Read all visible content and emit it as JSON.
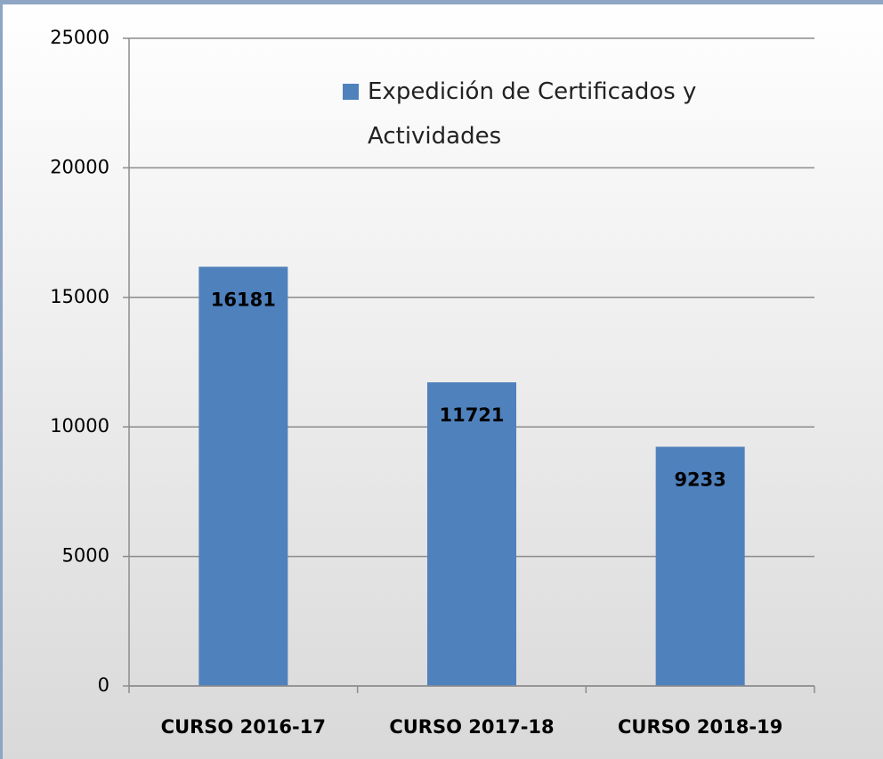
{
  "chart_data": {
    "type": "bar",
    "categories": [
      "CURSO 2016-17",
      "CURSO 2017-18",
      "CURSO 2018-19"
    ],
    "series": [
      {
        "name": "Expedición de Certificados y Actividades",
        "color": "#4f81bd",
        "values": [
          16181,
          11721,
          9233
        ]
      }
    ],
    "ylim": [
      0,
      25000
    ],
    "yticks": [
      0,
      5000,
      10000,
      15000,
      20000,
      25000
    ],
    "grid": true,
    "legend": "top-right",
    "data_labels": true
  }
}
